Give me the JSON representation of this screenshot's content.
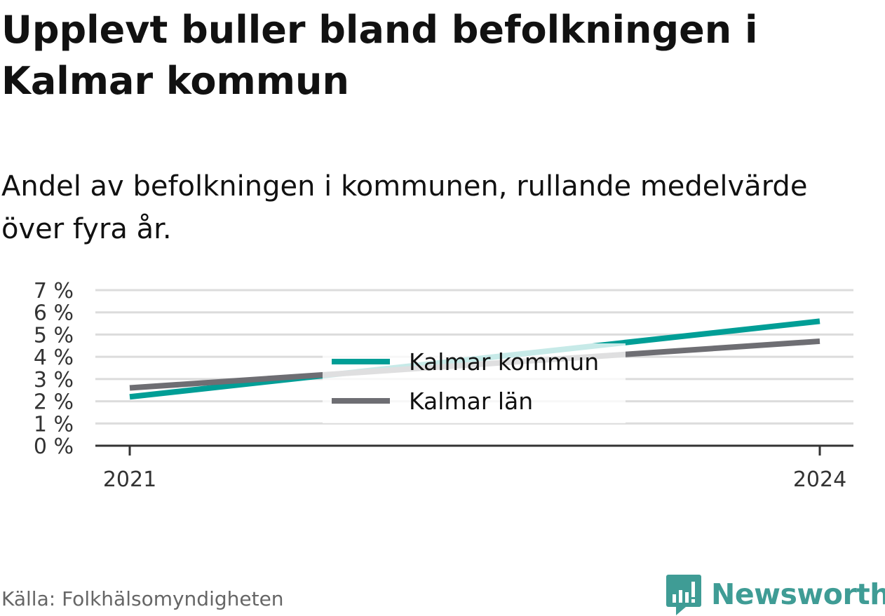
{
  "title": "Upplevt buller bland befolkningen i Kalmar kommun",
  "subtitle": "Andel av befolkningen i kommunen, rullande medelvärde över fyra år.",
  "source": "Källa: Folkhälsomyndigheten",
  "brand": {
    "name": "Newsworthy",
    "icon": "newsworthy-logo-icon",
    "color": "#3f9c95"
  },
  "chart_data": {
    "type": "line",
    "x": [
      2021,
      2024
    ],
    "x_ticks": [
      "2021",
      "2024"
    ],
    "y_ticks": [
      "0 %",
      "1 %",
      "2 %",
      "3 %",
      "4 %",
      "5 %",
      "6 %",
      "7 %"
    ],
    "ylim": [
      0,
      7
    ],
    "grid": true,
    "legend_position": "center",
    "series": [
      {
        "name": "Kalmar kommun",
        "values": [
          2.2,
          5.6
        ],
        "color": "#009e96"
      },
      {
        "name": "Kalmar län",
        "values": [
          2.6,
          4.7
        ],
        "color": "#6e6e73"
      }
    ]
  }
}
